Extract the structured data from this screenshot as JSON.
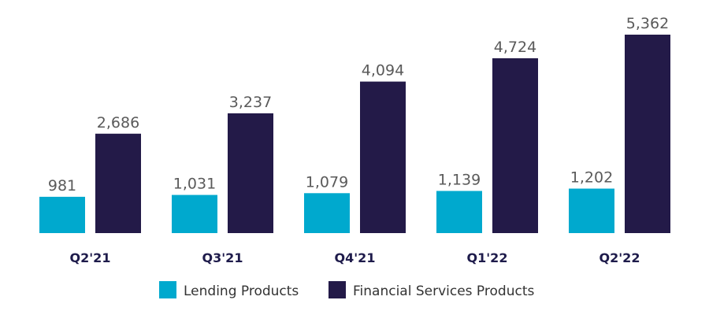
{
  "chart_data": {
    "type": "bar",
    "categories": [
      "Q2'21",
      "Q3'21",
      "Q4'21",
      "Q1'22",
      "Q2'22"
    ],
    "series": [
      {
        "name": "Lending Products",
        "color": "#00a9ce",
        "values": [
          981,
          1031,
          1079,
          1139,
          1202
        ],
        "labels": [
          "981",
          "1,031",
          "1,079",
          "1,139",
          "1,202"
        ]
      },
      {
        "name": "Financial Services Products",
        "color": "#231a48",
        "values": [
          2686,
          3237,
          4094,
          4724,
          5362
        ],
        "labels": [
          "2,686",
          "3,237",
          "4,094",
          "4,724",
          "5,362"
        ]
      }
    ],
    "title": "",
    "xlabel": "",
    "ylabel": "",
    "ylim": [
      0,
      5362
    ],
    "grid": false,
    "legend_position": "bottom-center"
  }
}
